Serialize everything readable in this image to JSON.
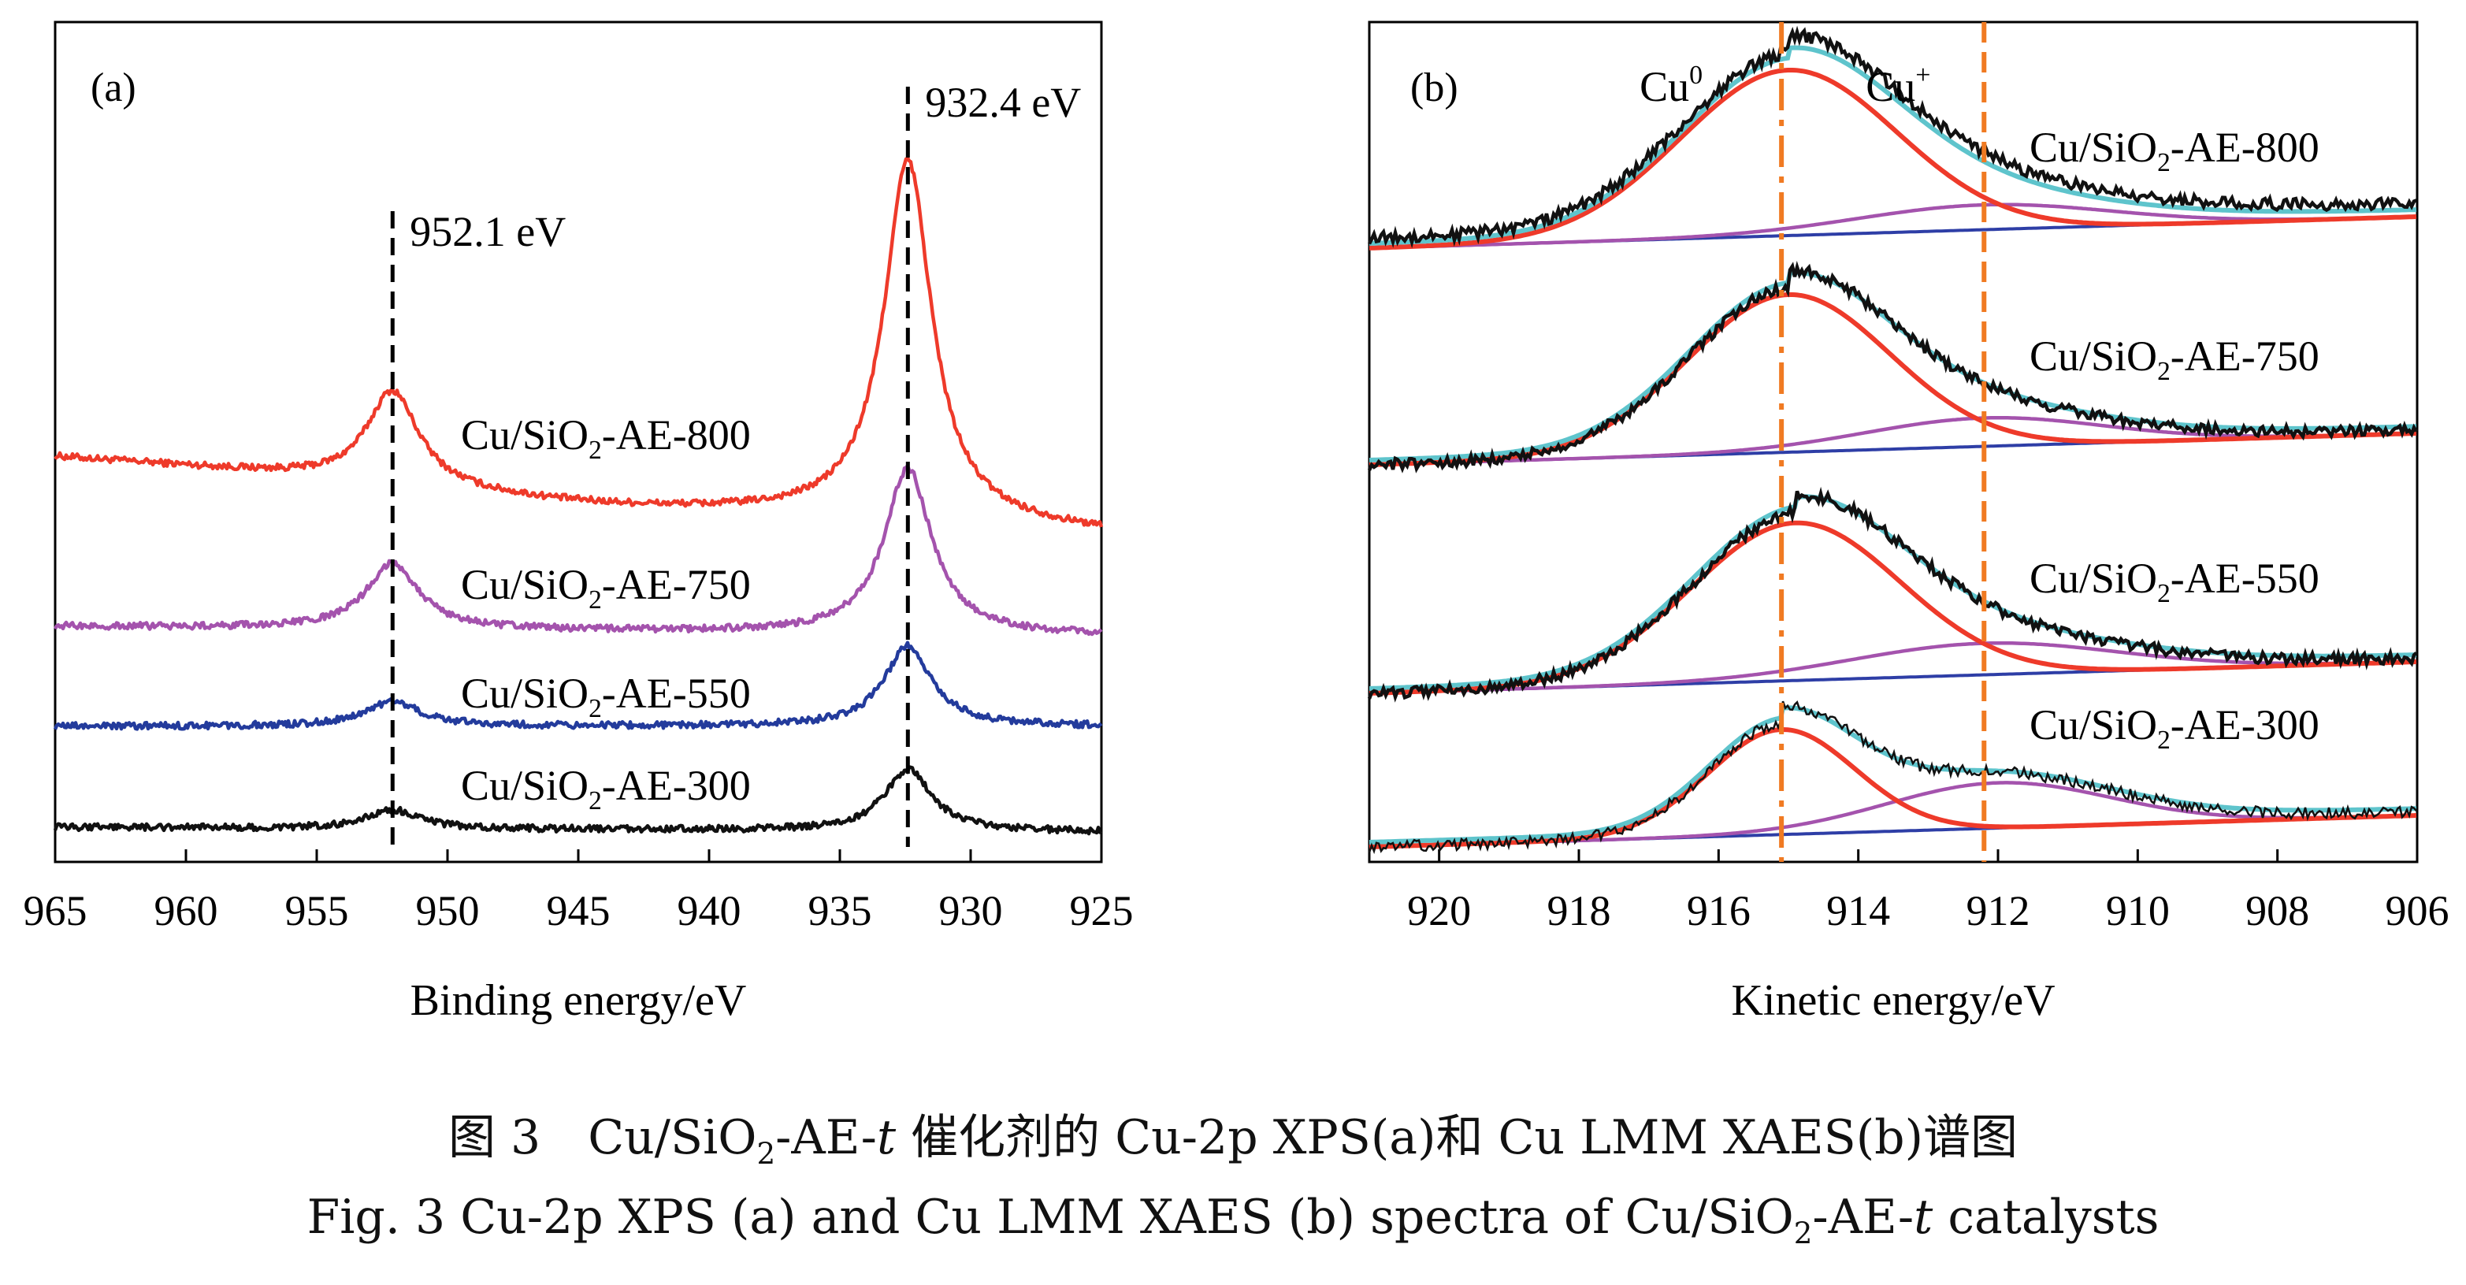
{
  "caption_cn": {
    "pre": "图 3　Cu/SiO",
    "sub": "2",
    "mid": "-AE-",
    "italic": "t",
    "post": " 催化剂的 Cu-2p XPS(a)和 Cu LMM XAES(b)谱图"
  },
  "caption_en": {
    "pre": "Fig. 3  Cu-2p XPS (a) and Cu LMM XAES (b) spectra of Cu/SiO",
    "sub": "2",
    "mid": "-AE-",
    "italic": "t",
    "post": " catalysts"
  },
  "chart_data": [
    {
      "panel": "(a)",
      "type": "line",
      "xlabel": "Binding energy/eV",
      "ylabel": "",
      "xlim": [
        965,
        925
      ],
      "reversed_x": true,
      "ticks": [
        965,
        960,
        955,
        950,
        945,
        940,
        935,
        930,
        925
      ],
      "reference_lines": [
        {
          "x": 952.1,
          "label": "952.1 eV"
        },
        {
          "x": 932.4,
          "label": "932.4 eV"
        }
      ],
      "series": [
        {
          "name": "Cu/SiO2-AE-800",
          "label_parts": [
            "Cu/SiO",
            "2",
            "-AE-800"
          ],
          "color": "#ee3a2a",
          "baseline": 0.7,
          "slope": -0.8,
          "peaks": [
            [
              952.1,
              1.0,
              1.2
            ],
            [
              932.4,
              3.8,
              1.1
            ]
          ],
          "dip": [
            [
              945,
              -0.1,
              6
            ]
          ]
        },
        {
          "name": "Cu/SiO2-AE-750",
          "label_parts": [
            "Cu/SiO",
            "2",
            "-AE-750"
          ],
          "color": "#a453ad",
          "baseline": 0.05,
          "slope": -0.1,
          "peaks": [
            [
              952.1,
              0.7,
              1.2
            ],
            [
              932.4,
              1.75,
              1.1
            ]
          ],
          "dip": []
        },
        {
          "name": "Cu/SiO2-AE-550",
          "label_parts": [
            "Cu/SiO",
            "2",
            "-AE-550"
          ],
          "color": "#233b9c",
          "baseline": -0.25,
          "slope": 0.0,
          "peaks": [
            [
              952.1,
              0.26,
              1.3
            ],
            [
              932.4,
              0.85,
              1.1
            ]
          ],
          "dip": []
        },
        {
          "name": "Cu/SiO2-AE-300",
          "label_parts": [
            "Cu/SiO",
            "2",
            "-AE-300"
          ],
          "color": "#111111",
          "baseline": -0.55,
          "slope": -0.05,
          "peaks": [
            [
              952.1,
              0.2,
              1.2
            ],
            [
              932.4,
              0.65,
              1.1
            ]
          ],
          "dip": []
        }
      ]
    },
    {
      "panel": "(b)",
      "type": "line",
      "xlabel": "Kinetic energy/eV",
      "ylabel": "",
      "xlim": [
        921,
        906
      ],
      "reversed_x": true,
      "ticks": [
        920,
        918,
        916,
        914,
        912,
        910,
        908,
        906
      ],
      "reference_lines": [
        {
          "x": 915.1,
          "label": "Cu",
          "sup": "0"
        },
        {
          "x": 912.2,
          "label": "Cu",
          "sup": "+"
        }
      ],
      "fit_colors": {
        "raw": "#111111",
        "envelope": "#5ec4cc",
        "cu0": "#ee3a2a",
        "cu_plus": "#a453ad",
        "background": "#2e3ea6"
      },
      "series": [
        {
          "name": "Cu/SiO2-AE-800",
          "label_parts": [
            "Cu/SiO",
            "2",
            "-AE-800"
          ],
          "cu0": {
            "center": 915.0,
            "amp": 1.0,
            "width": 1.55
          },
          "cu_plus": {
            "center": 912.2,
            "amp": 0.15,
            "width": 1.8
          },
          "bg": [
            0.0,
            0.11
          ]
        },
        {
          "name": "Cu/SiO2-AE-750",
          "label_parts": [
            "Cu/SiO",
            "2",
            "-AE-750"
          ],
          "cu0": {
            "center": 915.0,
            "amp": 1.0,
            "width": 1.45
          },
          "cu_plus": {
            "center": 912.2,
            "amp": 0.18,
            "width": 1.7
          },
          "bg": [
            0.0,
            0.12
          ]
        },
        {
          "name": "Cu/SiO2-AE-550",
          "label_parts": [
            "Cu/SiO",
            "2",
            "-AE-550"
          ],
          "cu0": {
            "center": 914.9,
            "amp": 1.0,
            "width": 1.5
          },
          "cu_plus": {
            "center": 912.2,
            "amp": 0.2,
            "width": 1.9
          },
          "bg": [
            0.0,
            0.12
          ]
        },
        {
          "name": "Cu/SiO2-AE-300",
          "label_parts": [
            "Cu/SiO",
            "2",
            "-AE-300"
          ],
          "cu0": {
            "center": 915.1,
            "amp": 0.65,
            "width": 1.05
          },
          "cu_plus": {
            "center": 912.0,
            "amp": 0.28,
            "width": 1.6
          },
          "bg": [
            0.0,
            0.12
          ]
        }
      ]
    }
  ]
}
